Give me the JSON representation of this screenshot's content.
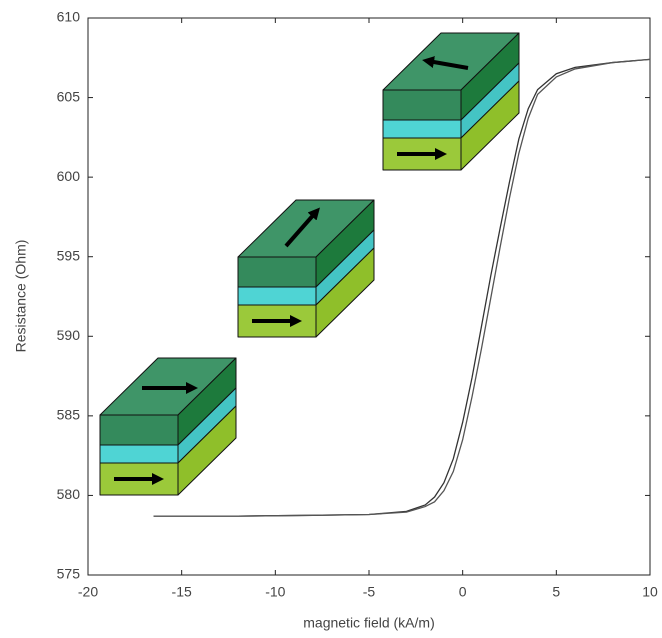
{
  "chart_data": {
    "type": "line",
    "xlabel": "magnetic field (kA/m)",
    "ylabel": "Resistance (Ohm)",
    "x": [
      -16.5,
      -12,
      -8,
      -5,
      -3,
      -2,
      -1.5,
      -1,
      -0.5,
      0,
      0.5,
      1,
      1.5,
      2,
      2.5,
      3,
      3.5,
      4,
      5,
      6,
      8,
      10
    ],
    "series": [
      {
        "color": "#333333",
        "values": [
          578.7,
          578.7,
          578.75,
          578.8,
          579.0,
          579.4,
          579.9,
          580.8,
          582.3,
          584.6,
          587.4,
          590.6,
          593.8,
          596.8,
          599.7,
          602.4,
          604.3,
          605.5,
          606.5,
          606.9,
          607.2,
          607.4
        ]
      },
      {
        "color": "#555555",
        "values": [
          578.7,
          578.7,
          578.75,
          578.8,
          578.95,
          579.3,
          579.6,
          580.3,
          581.5,
          583.5,
          586.2,
          589.2,
          592.4,
          595.6,
          598.7,
          601.5,
          603.7,
          605.2,
          606.3,
          606.8,
          607.2,
          607.4
        ]
      }
    ],
    "xlim": [
      -20,
      10
    ],
    "xticks": [
      -20,
      -15,
      -10,
      -5,
      0,
      5,
      10
    ],
    "ylim": [
      575,
      610
    ],
    "yticks": [
      575,
      580,
      585,
      590,
      595,
      600,
      605,
      610
    ],
    "grid": false
  }
}
